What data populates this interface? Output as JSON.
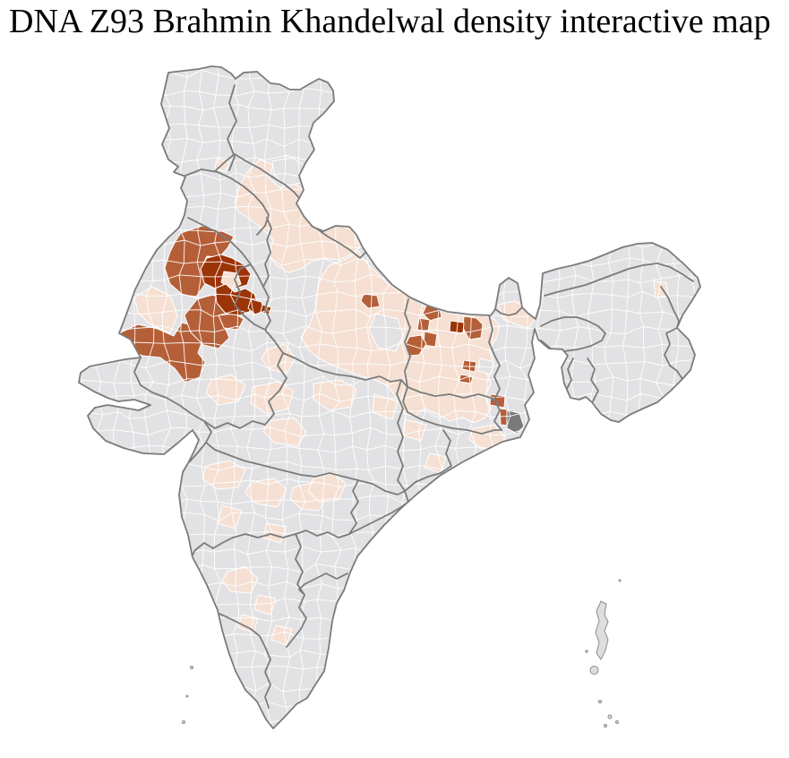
{
  "title": "DNA Z93 Brahmin Khandelwal density interactive map",
  "map": {
    "type": "choropleth",
    "region": "India (district level)",
    "palette": {
      "ocean": "#ffffff",
      "no_data_district": "#e2e2e5",
      "low_density": "#f5e0d3",
      "medium_density": "#b55f38",
      "high_density": "#9c3408",
      "metro_area": "#7a7a7a",
      "district_border": "#ffffff",
      "state_border": "#7b7b7b",
      "island_fill": "#dedee1",
      "island_stroke": "#8b8b8b"
    }
  }
}
